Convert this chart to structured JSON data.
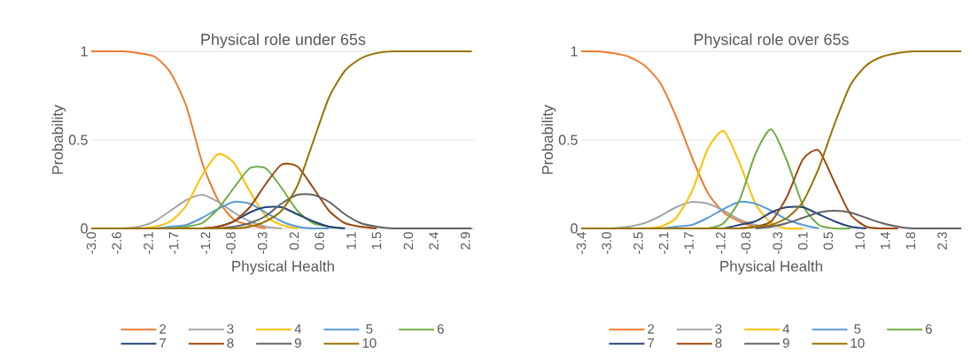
{
  "chart_data": [
    {
      "type": "line",
      "title": "Physical role under 65s",
      "xlabel": "Physical Health",
      "ylabel": "Probability",
      "x": [
        -3,
        -2.75,
        -2.5,
        -2.25,
        -2,
        -1.75,
        -1.5,
        -1.25,
        -1,
        -0.75,
        -0.5,
        -0.25,
        0,
        0.25,
        0.5,
        0.75,
        1,
        1.25,
        1.5,
        1.75,
        2,
        2.25,
        2.5,
        2.75,
        3
      ],
      "series": [
        {
          "name": "2",
          "color": "#ed7d31",
          "values": [
            1,
            1,
            1,
            0.99,
            0.97,
            0.88,
            0.69,
            0.37,
            0.16,
            0.05,
            0.02,
            0,
            null,
            null,
            null,
            null,
            null,
            null,
            null,
            null,
            null,
            null,
            null,
            null,
            null
          ]
        },
        {
          "name": "3",
          "color": "#a5a5a5",
          "values": [
            null,
            null,
            0,
            0.01,
            0.04,
            0.1,
            0.16,
            0.19,
            0.15,
            0.09,
            0.04,
            0.01,
            0,
            null,
            null,
            null,
            null,
            null,
            null,
            null,
            null,
            null,
            null,
            null,
            null
          ]
        },
        {
          "name": "4",
          "color": "#ffc000",
          "values": [
            null,
            null,
            null,
            0,
            0.01,
            0.04,
            0.13,
            0.3,
            0.42,
            0.37,
            0.21,
            0.07,
            0.02,
            0,
            null,
            null,
            null,
            null,
            null,
            null,
            null,
            null,
            null,
            null,
            null
          ]
        },
        {
          "name": "5",
          "color": "#5b9bd5",
          "values": [
            null,
            null,
            null,
            null,
            0,
            0.01,
            0.02,
            0.06,
            0.11,
            0.15,
            0.14,
            0.09,
            0.04,
            0.01,
            0,
            0,
            null,
            null,
            null,
            null,
            null,
            null,
            null,
            null,
            null
          ]
        },
        {
          "name": "6",
          "color": "#70ad47",
          "values": [
            null,
            null,
            null,
            null,
            null,
            0,
            0.01,
            0.03,
            0.11,
            0.23,
            0.34,
            0.34,
            0.23,
            0.1,
            0.03,
            0.01,
            0,
            null,
            null,
            null,
            null,
            null,
            null,
            null,
            null
          ]
        },
        {
          "name": "7",
          "color": "#264478",
          "values": [
            null,
            null,
            null,
            null,
            null,
            null,
            null,
            0,
            0.01,
            0.04,
            0.09,
            0.12,
            0.12,
            0.08,
            0.04,
            0.01,
            0,
            null,
            null,
            null,
            null,
            null,
            null,
            null,
            null
          ]
        },
        {
          "name": "8",
          "color": "#9e480e",
          "values": [
            null,
            null,
            null,
            null,
            null,
            null,
            null,
            0,
            0.01,
            0.04,
            0.12,
            0.25,
            0.36,
            0.35,
            0.23,
            0.1,
            0.03,
            0.01,
            0,
            null,
            null,
            null,
            null,
            null,
            null
          ]
        },
        {
          "name": "9",
          "color": "#636363",
          "values": [
            null,
            null,
            null,
            null,
            null,
            null,
            null,
            null,
            0,
            0.01,
            0.03,
            0.07,
            0.14,
            0.19,
            0.19,
            0.15,
            0.08,
            0.03,
            0.01,
            0,
            0,
            0,
            0,
            0,
            0
          ]
        },
        {
          "name": "10",
          "color": "#997300",
          "values": [
            0,
            0,
            0,
            0,
            0,
            0,
            0,
            0,
            0,
            0,
            0.01,
            0.04,
            0.1,
            0.24,
            0.49,
            0.74,
            0.89,
            0.96,
            0.99,
            1,
            1,
            1,
            1,
            1,
            1
          ]
        }
      ],
      "xlim": [
        -3.0,
        3.05
      ],
      "ylim": [
        0,
        1
      ],
      "xticks": [
        {
          "value": -3.0,
          "label": "-3.0"
        },
        {
          "value": -2.6,
          "label": "-2.6"
        },
        {
          "value": -2.1,
          "label": "-2.1"
        },
        {
          "value": -1.7,
          "label": "-1.7"
        },
        {
          "value": -1.2,
          "label": "-1.2"
        },
        {
          "value": -0.8,
          "label": "-0.8"
        },
        {
          "value": -0.3,
          "label": "-0.3"
        },
        {
          "value": 0.2,
          "label": "0.2"
        },
        {
          "value": 0.6,
          "label": "0.6"
        },
        {
          "value": 1.1,
          "label": "1.1"
        },
        {
          "value": 1.5,
          "label": "1.5"
        },
        {
          "value": 2.0,
          "label": "2.0"
        },
        {
          "value": 2.4,
          "label": "2.4"
        },
        {
          "value": 2.9,
          "label": "2.9"
        }
      ],
      "yticks": [
        0,
        0.5,
        1
      ],
      "grid": "y",
      "legend": "bottom"
    },
    {
      "type": "line",
      "title": "Physical role over 65s",
      "xlabel": "Physical Health",
      "ylabel": "Probability",
      "x": [
        -3.4,
        -3.15,
        -2.9,
        -2.65,
        -2.4,
        -2.15,
        -1.9,
        -1.65,
        -1.4,
        -1.15,
        -0.9,
        -0.65,
        -0.4,
        -0.15,
        0.1,
        0.35,
        0.6,
        0.85,
        1.1,
        1.35,
        1.6,
        1.85,
        2.1,
        2.35,
        2.6
      ],
      "series": [
        {
          "name": "2",
          "color": "#ed7d31",
          "values": [
            1,
            1,
            0.99,
            0.97,
            0.92,
            0.82,
            0.63,
            0.4,
            0.2,
            0.09,
            0.04,
            0.01,
            0.01,
            null,
            null,
            null,
            null,
            null,
            null,
            null,
            null,
            null,
            null,
            null,
            null
          ]
        },
        {
          "name": "3",
          "color": "#a5a5a5",
          "values": [
            null,
            null,
            0,
            0.01,
            0.03,
            0.07,
            0.12,
            0.15,
            0.14,
            0.1,
            0.05,
            0.02,
            0.01,
            null,
            null,
            null,
            null,
            null,
            null,
            null,
            null,
            null,
            null,
            null,
            null
          ]
        },
        {
          "name": "4",
          "color": "#ffc000",
          "values": [
            null,
            null,
            null,
            null,
            0,
            0.01,
            0.06,
            0.21,
            0.45,
            0.55,
            0.37,
            0.14,
            0.03,
            0,
            0,
            null,
            null,
            null,
            null,
            null,
            null,
            null,
            null,
            null,
            null
          ]
        },
        {
          "name": "5",
          "color": "#5b9bd5",
          "values": [
            null,
            null,
            null,
            null,
            null,
            0,
            0.01,
            0.02,
            0.06,
            0.11,
            0.15,
            0.14,
            0.1,
            0.05,
            0.02,
            0,
            null,
            null,
            null,
            null,
            null,
            null,
            null,
            null,
            null
          ]
        },
        {
          "name": "6",
          "color": "#70ad47",
          "values": [
            null,
            null,
            null,
            null,
            null,
            null,
            null,
            null,
            0,
            0.03,
            0.16,
            0.42,
            0.56,
            0.38,
            0.13,
            0.02,
            0,
            0,
            null,
            null,
            null,
            null,
            null,
            null,
            null
          ]
        },
        {
          "name": "7",
          "color": "#264478",
          "values": [
            null,
            null,
            null,
            null,
            null,
            null,
            null,
            null,
            null,
            0,
            0.02,
            0.04,
            0.09,
            0.12,
            0.12,
            0.08,
            0.04,
            0.01,
            0,
            null,
            null,
            null,
            null,
            null,
            null
          ]
        },
        {
          "name": "8",
          "color": "#9e480e",
          "values": [
            null,
            null,
            null,
            null,
            null,
            null,
            null,
            null,
            null,
            null,
            0,
            0.01,
            0.04,
            0.18,
            0.39,
            0.44,
            0.26,
            0.08,
            0.01,
            0,
            0,
            null,
            null,
            null,
            null
          ]
        },
        {
          "name": "9",
          "color": "#636363",
          "values": [
            null,
            null,
            null,
            null,
            null,
            null,
            null,
            null,
            null,
            null,
            null,
            0,
            0.01,
            0.03,
            0.06,
            0.09,
            0.1,
            0.09,
            0.06,
            0.03,
            0.01,
            0,
            0,
            0,
            0
          ]
        },
        {
          "name": "10",
          "color": "#997300",
          "values": [
            0,
            0,
            0,
            0,
            0,
            0,
            0,
            0,
            0,
            0,
            0,
            0.01,
            0.02,
            0.06,
            0.15,
            0.34,
            0.59,
            0.81,
            0.92,
            0.97,
            0.99,
            1,
            1,
            1,
            1
          ]
        }
      ],
      "xlim": [
        -3.4,
        2.6
      ],
      "ylim": [
        0,
        1
      ],
      "xticks": [
        {
          "value": -3.4,
          "label": "-3.4"
        },
        {
          "value": -3.0,
          "label": "-3.0"
        },
        {
          "value": -2.5,
          "label": "-2.5"
        },
        {
          "value": -2.1,
          "label": "-2.1"
        },
        {
          "value": -1.7,
          "label": "-1.7"
        },
        {
          "value": -1.2,
          "label": "-1.2"
        },
        {
          "value": -0.8,
          "label": "-0.8"
        },
        {
          "value": -0.3,
          "label": "-0.3"
        },
        {
          "value": 0.1,
          "label": "0.1"
        },
        {
          "value": 0.5,
          "label": "0.5"
        },
        {
          "value": 1.0,
          "label": "1.0"
        },
        {
          "value": 1.4,
          "label": "1.4"
        },
        {
          "value": 1.8,
          "label": "1.8"
        },
        {
          "value": 2.3,
          "label": "2.3"
        }
      ],
      "yticks": [
        0,
        0.5,
        1
      ],
      "grid": "y",
      "legend": "bottom"
    }
  ]
}
